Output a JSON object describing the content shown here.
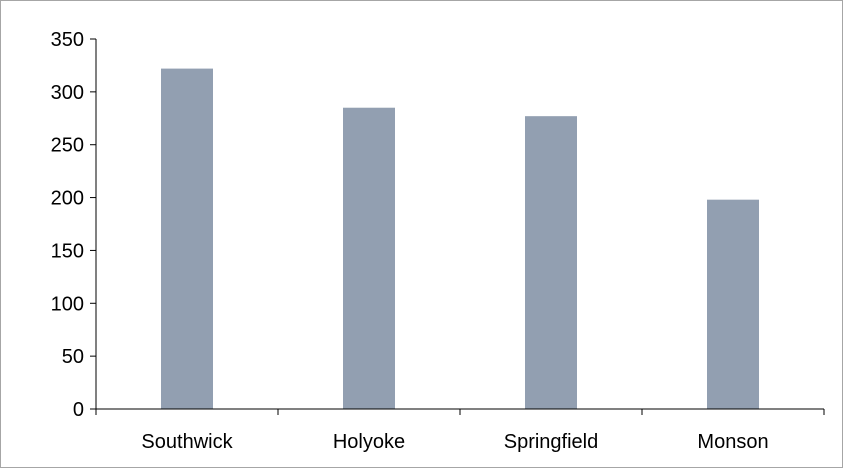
{
  "chart_data": {
    "type": "bar",
    "categories": [
      "Southwick",
      "Holyoke",
      "Springfield",
      "Monson"
    ],
    "values": [
      322,
      285,
      277,
      198
    ],
    "title": "",
    "xlabel": "",
    "ylabel": "",
    "ylim": [
      0,
      350
    ],
    "yticks": [
      0,
      50,
      100,
      150,
      200,
      250,
      300,
      350
    ],
    "grid": false,
    "legend": "none",
    "colors": {
      "bar": "#929FB1",
      "axis": "#000000",
      "frame": "#A6A6A6"
    }
  }
}
